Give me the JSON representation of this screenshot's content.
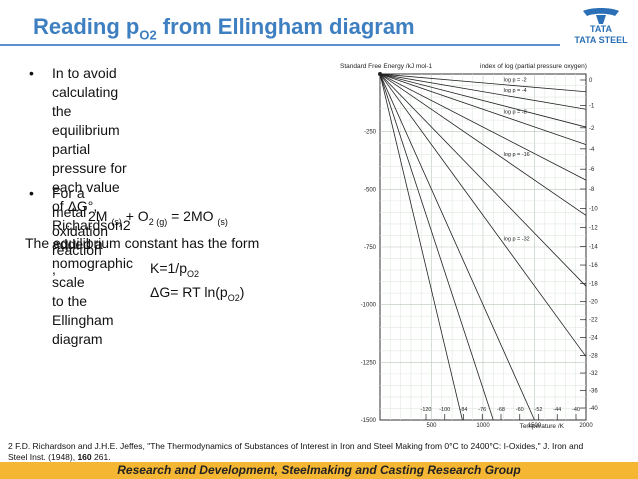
{
  "title": {
    "prefix": "Reading p",
    "subscript": "O2",
    "suffix": " from Ellingham diagram"
  },
  "logo": {
    "brand": "TATA",
    "sub": "TATA STEEL",
    "color": "#2b6fb6"
  },
  "bullets": [
    {
      "symbol": "•",
      "lines": [
        "In to avoid calculating the equilibrium",
        "partial pressure for each value of ΔG°,",
        "Richardson2 added a nomographic scale",
        "to the Ellingham diagram"
      ]
    },
    {
      "symbol": "•",
      "lines": [
        "For a metal oxidation reaction ,"
      ]
    }
  ],
  "reaction": {
    "a": "2M ",
    "a_sub": "(s)",
    "b": " + O",
    "b_sub": "2 (g)",
    "c": " = 2MO ",
    "c_sub": "(s)"
  },
  "equilibrium_text": "The equilibrium constant has the form",
  "k_expr": {
    "text": "K=1/p",
    "sub": "O2"
  },
  "dg_expr": {
    "text": "ΔG= RT ln(p",
    "sub": "O2",
    "end": ")"
  },
  "chart_data": {
    "type": "line",
    "ylabel": "Standard Free Energy /kJ mol-1",
    "xlabel": "Temperature /K",
    "right_axis_label": "index of log (partial pressure oxygen)",
    "xlim": [
      0,
      2000
    ],
    "ylim": [
      -1500,
      0
    ],
    "x_ticks": [
      500,
      1000,
      1500,
      2000
    ],
    "y_ticks": [
      -250,
      -500,
      -750,
      -1000,
      -1250,
      -1500
    ],
    "grid": true,
    "right_ticks": [
      "0",
      "-1",
      "-2",
      "-4",
      "-6",
      "-8",
      "-10",
      "-12",
      "-14",
      "-16",
      "-18",
      "-20",
      "-22",
      "-24",
      "-28",
      "-32",
      "-36",
      "-40"
    ],
    "bottom_index_ticks": [
      "-120",
      "-100",
      "-84",
      "-76",
      "-68",
      "-60",
      "-52",
      "-44",
      "-40"
    ],
    "series": [
      {
        "name": "log p = -2",
        "x": [
          0,
          2000
        ],
        "y": [
          0,
          -77
        ]
      },
      {
        "name": "log p = -4",
        "x": [
          0,
          2000
        ],
        "y": [
          0,
          -153
        ]
      },
      {
        "name": "log p = -8",
        "x": [
          0,
          2000
        ],
        "y": [
          0,
          -306
        ]
      },
      {
        "name": "log p = -16",
        "x": [
          0,
          2000
        ],
        "y": [
          0,
          -613
        ]
      },
      {
        "name": "log p = -32",
        "x": [
          0,
          2000
        ],
        "y": [
          0,
          -1225
        ]
      },
      {
        "x": [
          0,
          2000
        ],
        "y": [
          0,
          -230
        ]
      },
      {
        "x": [
          0,
          2000
        ],
        "y": [
          0,
          -460
        ]
      },
      {
        "x": [
          0,
          2000
        ],
        "y": [
          0,
          -920
        ]
      },
      {
        "x": [
          0,
          1500
        ],
        "y": [
          0,
          -1500
        ]
      },
      {
        "x": [
          0,
          1100
        ],
        "y": [
          0,
          -1500
        ]
      },
      {
        "x": [
          0,
          800
        ],
        "y": [
          0,
          -1500
        ]
      }
    ]
  },
  "footnote": {
    "text": "2 F.D. Richardson and J.H.E. Jeffes, \"The Thermodynamics of Substances of Interest in Iron and Steel Making from 0°C to 2400°C: I-Oxides,\" J. Iron and Steel Inst. (1948), ",
    "volume": "160",
    "pages": " 261."
  },
  "footer": "Research and Development, Steelmaking and Casting Research Group",
  "colors": {
    "title": "#3d7fc0",
    "footer_bg": "#f5b733",
    "rule": "#5b8fd0"
  }
}
